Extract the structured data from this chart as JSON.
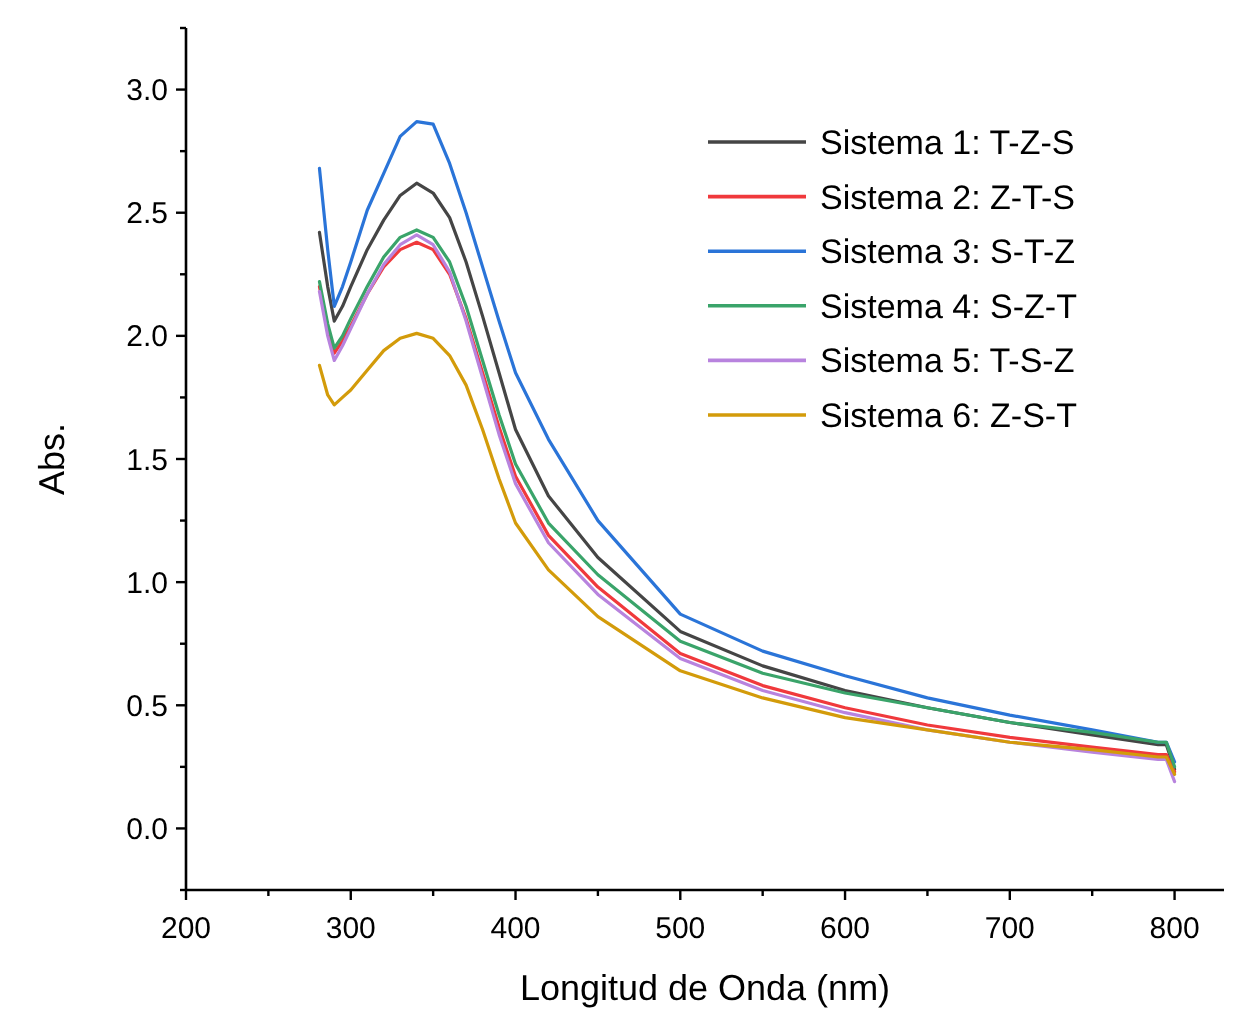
{
  "chart_data": {
    "type": "line",
    "xlabel": "Longitud de Onda (nm)",
    "ylabel": "Abs.",
    "x": [
      281,
      286,
      290,
      295,
      300,
      310,
      320,
      330,
      340,
      350,
      360,
      370,
      380,
      390,
      400,
      420,
      450,
      500,
      550,
      600,
      650,
      700,
      750,
      790,
      795,
      800
    ],
    "series": [
      {
        "name": "Sistema 1: T-Z-S",
        "color": "#454545",
        "values": [
          2.42,
          2.2,
          2.06,
          2.12,
          2.2,
          2.35,
          2.47,
          2.57,
          2.62,
          2.58,
          2.48,
          2.3,
          2.08,
          1.85,
          1.62,
          1.35,
          1.1,
          0.8,
          0.66,
          0.56,
          0.49,
          0.43,
          0.38,
          0.34,
          0.34,
          0.24
        ]
      },
      {
        "name": "Sistema 2: Z-T-S",
        "color": "#f0393c",
        "values": [
          2.2,
          2.03,
          1.93,
          1.98,
          2.04,
          2.17,
          2.28,
          2.35,
          2.38,
          2.35,
          2.25,
          2.07,
          1.85,
          1.63,
          1.43,
          1.19,
          0.98,
          0.71,
          0.58,
          0.49,
          0.42,
          0.37,
          0.33,
          0.3,
          0.3,
          0.23
        ]
      },
      {
        "name": "Sistema 3: S-T-Z",
        "color": "#2a74d8",
        "values": [
          2.68,
          2.35,
          2.12,
          2.2,
          2.3,
          2.51,
          2.66,
          2.81,
          2.87,
          2.86,
          2.7,
          2.5,
          2.28,
          2.06,
          1.85,
          1.58,
          1.25,
          0.87,
          0.72,
          0.62,
          0.53,
          0.46,
          0.4,
          0.35,
          0.35,
          0.27
        ]
      },
      {
        "name": "Sistema 4: S-Z-T",
        "color": "#3aa46a",
        "values": [
          2.22,
          2.05,
          1.95,
          2.0,
          2.07,
          2.2,
          2.32,
          2.4,
          2.43,
          2.4,
          2.3,
          2.12,
          1.9,
          1.68,
          1.48,
          1.24,
          1.03,
          0.76,
          0.63,
          0.55,
          0.49,
          0.43,
          0.39,
          0.35,
          0.35,
          0.25
        ]
      },
      {
        "name": "Sistema 5: T-S-Z",
        "color": "#b883de",
        "values": [
          2.18,
          2.0,
          1.9,
          1.96,
          2.03,
          2.17,
          2.29,
          2.37,
          2.41,
          2.37,
          2.26,
          2.06,
          1.83,
          1.6,
          1.4,
          1.16,
          0.95,
          0.69,
          0.56,
          0.47,
          0.4,
          0.35,
          0.31,
          0.28,
          0.28,
          0.19
        ]
      },
      {
        "name": "Sistema 6: Z-S-T",
        "color": "#d39b0a",
        "values": [
          1.88,
          1.76,
          1.72,
          1.75,
          1.78,
          1.86,
          1.94,
          1.99,
          2.01,
          1.99,
          1.92,
          1.8,
          1.62,
          1.42,
          1.24,
          1.05,
          0.86,
          0.64,
          0.53,
          0.45,
          0.4,
          0.35,
          0.32,
          0.29,
          0.29,
          0.22
        ]
      }
    ],
    "xlim": [
      200,
      830
    ],
    "xticks": [
      200,
      {
        "value": 250,
        "label": null
      },
      300,
      {
        "value": 350,
        "label": null
      },
      400,
      {
        "value": 450,
        "label": null
      },
      500,
      {
        "value": 550,
        "label": null
      },
      600,
      {
        "value": 650,
        "label": null
      },
      700,
      {
        "value": 750,
        "label": null
      },
      800
    ],
    "ylim": [
      -0.25,
      3.25
    ],
    "yticks": [
      {
        "value": -0.25,
        "label": null
      },
      {
        "value": 0,
        "label": "0.0"
      },
      {
        "value": 0.25,
        "label": null
      },
      0.5,
      {
        "value": 0.75,
        "label": null
      },
      {
        "value": 1,
        "label": "1.0"
      },
      {
        "value": 1.25,
        "label": null
      },
      1.5,
      {
        "value": 1.75,
        "label": null
      },
      {
        "value": 2,
        "label": "2.0"
      },
      {
        "value": 2.25,
        "label": null
      },
      2.5,
      {
        "value": 2.75,
        "label": null
      },
      {
        "value": 3,
        "label": "3.0"
      },
      {
        "value": 3.25,
        "label": null
      }
    ],
    "grid": false,
    "legend": "top right",
    "line_style": "solid"
  }
}
